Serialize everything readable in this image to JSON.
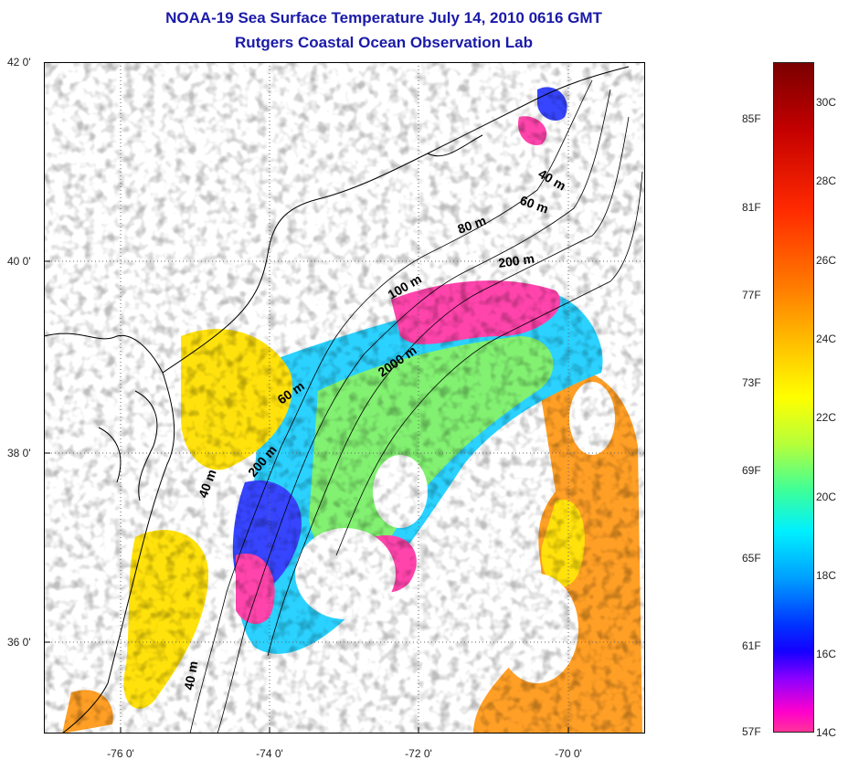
{
  "title": {
    "line1": "NOAA-19 Sea Surface Temperature July 14, 2010 0616 GMT",
    "line2": "Rutgers Coastal Ocean Observation Lab"
  },
  "axes": {
    "y_labels": [
      "42 0'",
      "40 0'",
      "38 0'",
      "36 0'"
    ],
    "x_labels": [
      "-76 0'",
      "-74 0'",
      "-72 0'",
      "-70 0'"
    ]
  },
  "isobaths": [
    "40 m",
    "60 m",
    "80 m",
    "200 m",
    "100 m",
    "2000 m",
    "60 m",
    "200 m",
    "40 m",
    "40 m"
  ],
  "colorbar": {
    "fahrenheit": [
      "85F",
      "81F",
      "77F",
      "73F",
      "69F",
      "65F",
      "61F",
      "57F"
    ],
    "celsius": [
      "30C",
      "28C",
      "26C",
      "24C",
      "22C",
      "20C",
      "18C",
      "16C",
      "14C"
    ]
  },
  "colors": {
    "title": "#1a1aa8",
    "coastline": "#000000",
    "warm": "#ff9a1a",
    "hot": "#ffe000",
    "mid": "#7cf06a",
    "cool": "#20d0ff",
    "cold": "#2d3cff",
    "coldest": "#ff3aa8"
  }
}
